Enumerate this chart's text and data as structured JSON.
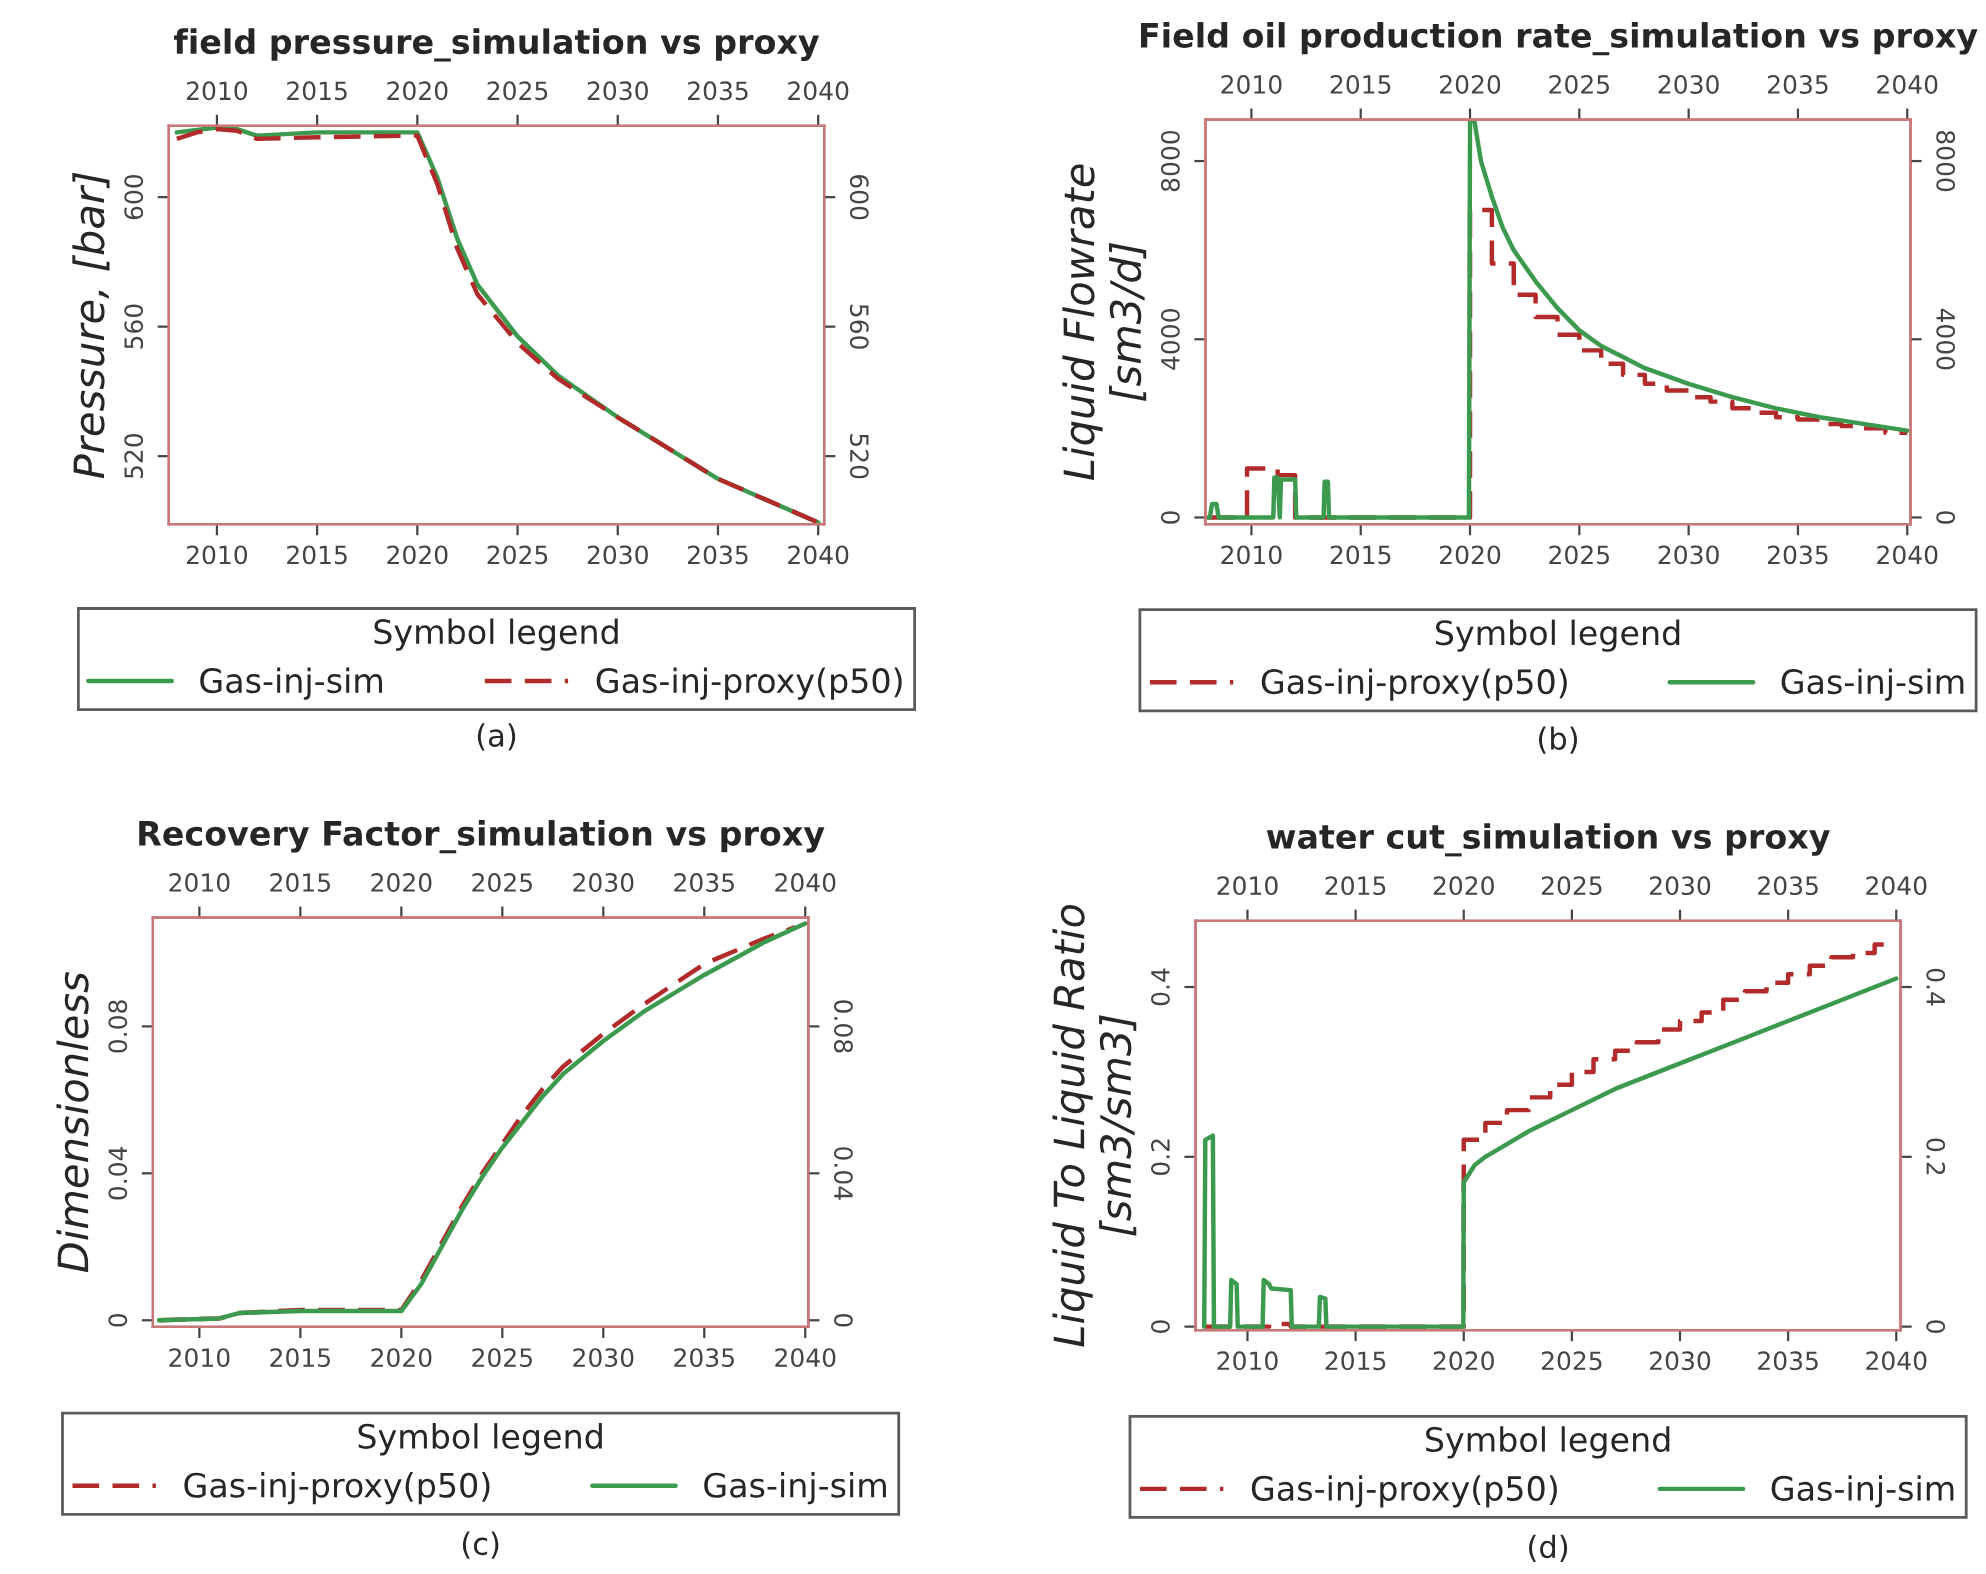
{
  "chart_data": [
    {
      "type": "line",
      "title": "field pressure_simulation vs proxy",
      "ylabel": "Pressure, [bar]",
      "legend_title": "Symbol legend",
      "legend": "bottom",
      "annotations": [
        "(a)"
      ],
      "xlim": [
        2007.6,
        2040.3
      ],
      "xticks": [
        2010,
        2015,
        2020,
        2025,
        2030,
        2035,
        2040
      ],
      "x2lim": [
        2007.6,
        2040.3
      ],
      "x2ticks": [
        2010,
        2015,
        2020,
        2025,
        2030,
        2035,
        2040
      ],
      "ylim": [
        499,
        622
      ],
      "yticks": [
        520,
        560,
        600
      ],
      "y2lim": [
        499,
        622
      ],
      "y2ticks": [
        520,
        560,
        600
      ],
      "series": [
        {
          "name": "Gas-inj-sim",
          "color": "#3c9a4e",
          "line_style": "solid",
          "x": [
            2008,
            2010,
            2011,
            2012,
            2015,
            2019.8,
            2020,
            2021,
            2022,
            2023,
            2025,
            2027,
            2030,
            2035,
            2040
          ],
          "values": [
            620,
            621.5,
            621,
            619,
            620,
            620,
            620,
            606,
            587,
            573,
            557,
            545,
            532,
            513,
            499.5
          ]
        },
        {
          "name": "Gas-inj-proxy(p50)",
          "color": "#b22a2a",
          "line_style": "dashed",
          "x": [
            2008,
            2009,
            2010,
            2011,
            2012,
            2015,
            2019.8,
            2020,
            2021,
            2022,
            2023,
            2025,
            2027,
            2030,
            2035,
            2040
          ],
          "values": [
            618,
            620,
            621,
            620.5,
            618,
            618.5,
            619,
            619,
            604,
            584,
            570,
            555,
            544,
            532,
            513,
            499.5
          ]
        }
      ]
    },
    {
      "type": "line",
      "title": "Field oil production rate_simulation vs proxy",
      "ylabel": "Liquid Flowrate\n[sm3/d]",
      "legend_title": "Symbol legend",
      "legend": "bottom",
      "annotations": [
        "(b)"
      ],
      "xlim": [
        2007.9,
        2040.15
      ],
      "xticks": [
        2010,
        2015,
        2020,
        2025,
        2030,
        2035,
        2040
      ],
      "x2lim": [
        2007.9,
        2040.15
      ],
      "x2ticks": [
        2010,
        2015,
        2020,
        2025,
        2030,
        2035,
        2040
      ],
      "ylim": [
        -150,
        8930
      ],
      "yticks": [
        0,
        4000,
        8000
      ],
      "y2lim": [
        -150,
        8930
      ],
      "y2ticks": [
        0,
        4000,
        8000
      ],
      "series": [
        {
          "name": "Gas-inj-proxy(p50)",
          "color": "#b22a2a",
          "line_style": "dashed",
          "type": "step",
          "x": [
            2008,
            2009.8,
            2011.2,
            2012,
            2020,
            2021,
            2022,
            2023,
            2024,
            2025,
            2026,
            2027,
            2028,
            2029,
            2030,
            2031,
            2032,
            2033,
            2034,
            2035,
            2036,
            2037,
            2038,
            2039,
            2040
          ],
          "values": [
            0,
            1100,
            950,
            0,
            6900,
            5700,
            5000,
            4500,
            4100,
            3750,
            3450,
            3200,
            3000,
            2850,
            2700,
            2600,
            2450,
            2350,
            2250,
            2200,
            2100,
            2050,
            2000,
            1900,
            1900
          ]
        },
        {
          "name": "Gas-inj-sim",
          "color": "#3c9a4e",
          "line_style": "solid",
          "x": [
            2008,
            2008.1,
            2008.2,
            2008.4,
            2008.5,
            2011.0,
            2011.05,
            2011.2,
            2011.3,
            2011.35,
            2012,
            2012.05,
            2013.3,
            2013.35,
            2013.5,
            2013.55,
            2019.95,
            2020.0,
            2020.2,
            2020.3,
            2020.5,
            2021,
            2021.5,
            2022,
            2023,
            2024,
            2025,
            2026,
            2027,
            2028,
            2030,
            2032,
            2034,
            2036,
            2038,
            2040
          ],
          "values": [
            0,
            0,
            300,
            300,
            0,
            0,
            900,
            900,
            0,
            850,
            850,
            0,
            0,
            800,
            800,
            0,
            0,
            8900,
            8900,
            8600,
            8000,
            7200,
            6500,
            6000,
            5300,
            4700,
            4200,
            3850,
            3600,
            3350,
            3000,
            2700,
            2450,
            2250,
            2100,
            1950
          ]
        }
      ]
    },
    {
      "type": "line",
      "title": "Recovery Factor_simulation vs proxy",
      "ylabel": "Dimensionless",
      "legend_title": "Symbol legend",
      "legend": "bottom",
      "annotations": [
        "(c)"
      ],
      "xlim": [
        2007.7,
        2040.15
      ],
      "xticks": [
        2010,
        2015,
        2020,
        2025,
        2030,
        2035,
        2040
      ],
      "x2lim": [
        2007.7,
        2040.15
      ],
      "x2ticks": [
        2010,
        2015,
        2020,
        2025,
        2030,
        2035,
        2040
      ],
      "ylim": [
        -0.0018,
        0.1096
      ],
      "yticks": [
        0,
        0.04,
        0.08
      ],
      "y2lim": [
        -0.0018,
        0.1096
      ],
      "y2ticks": [
        0,
        0.04,
        0.08
      ],
      "series": [
        {
          "name": "Gas-inj-proxy(p50)",
          "color": "#b22a2a",
          "line_style": "dashed",
          "x": [
            2008,
            2011,
            2012,
            2015,
            2020,
            2021,
            2022,
            2023,
            2024,
            2025,
            2026,
            2027,
            2028,
            2030,
            2032,
            2035,
            2038,
            2039.5
          ],
          "values": [
            0,
            0.0005,
            0.002,
            0.0028,
            0.0028,
            0.011,
            0.021,
            0.031,
            0.04,
            0.048,
            0.056,
            0.063,
            0.069,
            0.078,
            0.086,
            0.097,
            0.104,
            0.107
          ]
        },
        {
          "name": "Gas-inj-sim",
          "color": "#3c9a4e",
          "line_style": "solid",
          "x": [
            2008,
            2011,
            2012,
            2015,
            2020,
            2021,
            2022,
            2023,
            2024,
            2025,
            2026,
            2027,
            2028,
            2030,
            2032,
            2035,
            2038,
            2040
          ],
          "values": [
            0,
            0.0005,
            0.002,
            0.0025,
            0.0025,
            0.01,
            0.02,
            0.03,
            0.039,
            0.047,
            0.054,
            0.061,
            0.067,
            0.076,
            0.084,
            0.094,
            0.103,
            0.108
          ]
        }
      ]
    },
    {
      "type": "line",
      "title": "water cut_simulation vs proxy",
      "ylabel": "Liquid To Liquid Ratio\n[sm3/sm3]",
      "legend_title": "Symbol legend",
      "legend": "bottom",
      "annotations": [
        "(d)"
      ],
      "xlim": [
        2007.6,
        2040.2
      ],
      "xticks": [
        2010,
        2015,
        2020,
        2025,
        2030,
        2035,
        2040
      ],
      "x2lim": [
        2007.6,
        2040.2
      ],
      "x2ticks": [
        2010,
        2015,
        2020,
        2025,
        2030,
        2035,
        2040
      ],
      "ylim": [
        -0.004,
        0.478
      ],
      "yticks": [
        0,
        0.2,
        0.4
      ],
      "y2lim": [
        -0.004,
        0.478
      ],
      "y2ticks": [
        0,
        0.2,
        0.4
      ],
      "series": [
        {
          "name": "Gas-inj-proxy(p50)",
          "color": "#b22a2a",
          "line_style": "dashed",
          "type": "step",
          "x": [
            2008,
            2011,
            2012,
            2020,
            2021,
            2022,
            2023,
            2024,
            2025,
            2026,
            2027,
            2028,
            2029,
            2030,
            2031,
            2032,
            2033,
            2034,
            2035,
            2036,
            2037,
            2038,
            2039,
            2040
          ],
          "values": [
            0,
            0.003,
            0,
            0.22,
            0.24,
            0.255,
            0.27,
            0.285,
            0.3,
            0.315,
            0.325,
            0.335,
            0.35,
            0.36,
            0.37,
            0.385,
            0.395,
            0.405,
            0.415,
            0.425,
            0.435,
            0.44,
            0.45,
            0.45
          ]
        },
        {
          "name": "Gas-inj-sim",
          "color": "#3c9a4e",
          "line_style": "solid",
          "x": [
            2008,
            2008.05,
            2008.4,
            2008.45,
            2009.2,
            2009.25,
            2009.5,
            2009.55,
            2010.7,
            2010.75,
            2011,
            2011.1,
            2012,
            2012.05,
            2013.3,
            2013.35,
            2013.6,
            2013.65,
            2019.98,
            2020.0,
            2020.5,
            2021,
            2022,
            2023,
            2025,
            2027,
            2030,
            2033,
            2035,
            2038,
            2040
          ],
          "values": [
            0,
            0.22,
            0.225,
            0,
            0,
            0.055,
            0.05,
            0,
            0,
            0.055,
            0.05,
            0.045,
            0.043,
            0,
            0,
            0.035,
            0.033,
            0,
            0,
            0.17,
            0.19,
            0.2,
            0.215,
            0.23,
            0.255,
            0.28,
            0.31,
            0.34,
            0.36,
            0.39,
            0.41
          ]
        }
      ]
    }
  ]
}
